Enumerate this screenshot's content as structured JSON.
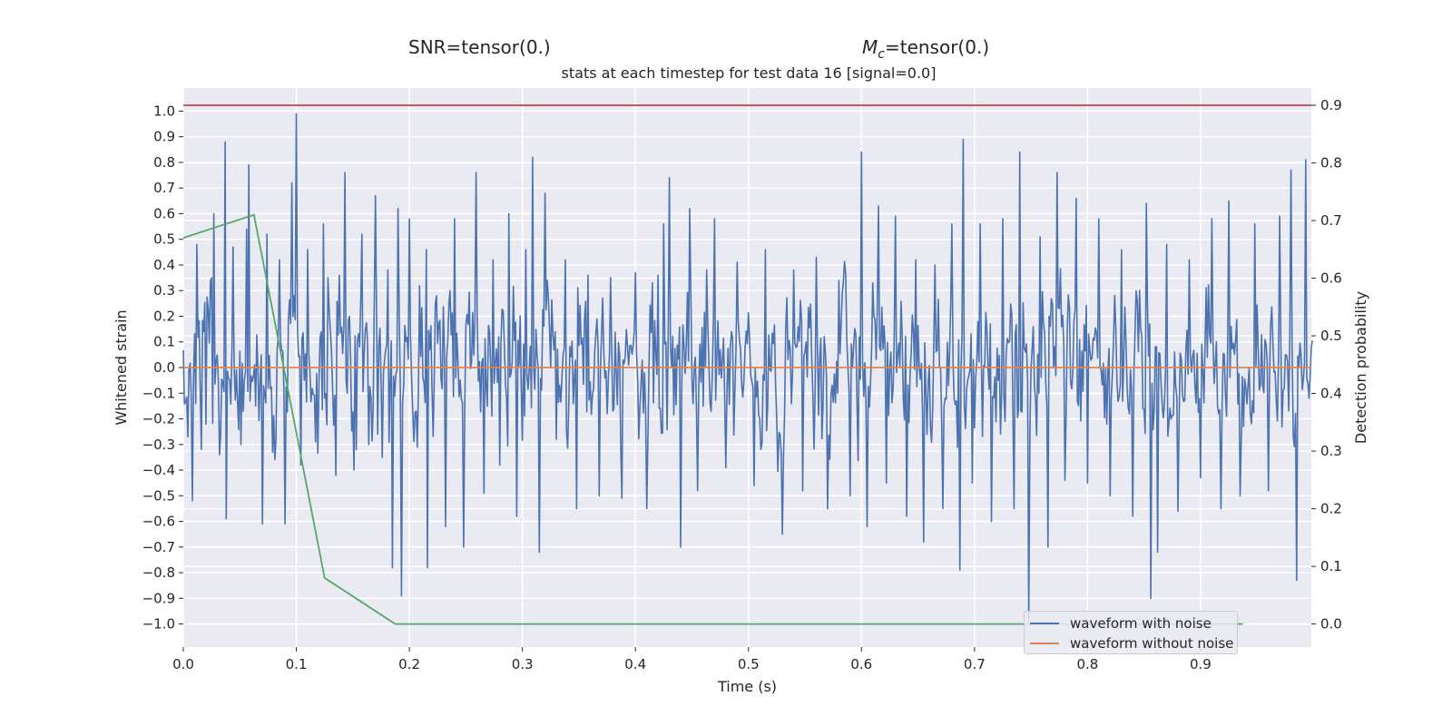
{
  "titles": {
    "snr": "SNR=tensor(0.)",
    "mc_symbol": "M",
    "mc_sub": "c",
    "mc_value": "=tensor(0.)",
    "plot": "stats at each timestep for test data 16 [signal=0.0]"
  },
  "chart_data": {
    "type": "line",
    "xlabel": "Time (s)",
    "ylabel_left": "Whitened strain",
    "ylabel_right": "Detection probability",
    "xlim": [
      0.0,
      0.998
    ],
    "ylim_left": [
      -1.09,
      1.09
    ],
    "ylim_right": [
      -0.04,
      0.93
    ],
    "x_ticks": [
      "0.0",
      "0.1",
      "0.2",
      "0.3",
      "0.4",
      "0.5",
      "0.6",
      "0.7",
      "0.8",
      "0.9"
    ],
    "y_ticks_left": [
      "1.0",
      "0.9",
      "0.8",
      "0.7",
      "0.6",
      "0.5",
      "0.4",
      "0.3",
      "0.2",
      "0.1",
      "0.0",
      "-0.1",
      "-0.2",
      "-0.3",
      "-0.4",
      "-0.5",
      "-0.6",
      "-0.7",
      "-0.8",
      "-0.9",
      "-1.0"
    ],
    "y_ticks_right": [
      "0.9",
      "0.8",
      "0.7",
      "0.6",
      "0.5",
      "0.4",
      "0.3",
      "0.2",
      "0.1",
      "0.0"
    ],
    "grid": true,
    "legend_position": "lower-right",
    "colors": {
      "noise": "#4c72b0",
      "clean": "#dd8452",
      "probability": "#55a868",
      "threshold": "#c44e52",
      "background": "#eaeaf2",
      "grid": "#ffffff"
    },
    "series": [
      {
        "name": "waveform with noise",
        "axis": "left",
        "points": 1000,
        "min": -1.0,
        "max": 1.0,
        "description_value": "noisy whitened strain"
      },
      {
        "name": "waveform without noise",
        "axis": "left",
        "x": [
          0.0,
          0.998
        ],
        "y": [
          0.0,
          0.0
        ]
      },
      {
        "axis": "right",
        "x": [
          0.0,
          0.0625,
          0.125,
          0.1875,
          0.9375
        ],
        "y": [
          0.67,
          0.71,
          0.08,
          0.0,
          0.0
        ]
      },
      {
        "axis": "right",
        "x": [
          0.0,
          0.998
        ],
        "y": [
          0.9,
          0.9
        ]
      }
    ],
    "noise_peaks": [
      [
        0.004,
        -0.27
      ],
      [
        0.0075,
        -0.52
      ],
      [
        0.012,
        0.48
      ],
      [
        0.02,
        -0.22
      ],
      [
        0.027,
        0.6
      ],
      [
        0.032,
        -0.34
      ],
      [
        0.037,
        0.88
      ],
      [
        0.038,
        -0.59
      ],
      [
        0.044,
        0.47
      ],
      [
        0.051,
        -0.3
      ],
      [
        0.056,
        0.54
      ],
      [
        0.058,
        0.79
      ],
      [
        0.064,
        -0.15
      ],
      [
        0.07,
        -0.61
      ],
      [
        0.074,
        0.52
      ],
      [
        0.079,
        -0.33
      ],
      [
        0.085,
        0.42
      ],
      [
        0.09,
        -0.61
      ],
      [
        0.096,
        0.72
      ],
      [
        0.1,
        0.99
      ],
      [
        0.104,
        -0.38
      ],
      [
        0.11,
        0.46
      ],
      [
        0.117,
        -0.29
      ],
      [
        0.124,
        0.56
      ],
      [
        0.128,
        0.35
      ],
      [
        0.135,
        -0.42
      ],
      [
        0.143,
        0.76
      ],
      [
        0.151,
        -0.4
      ],
      [
        0.158,
        0.52
      ],
      [
        0.164,
        -0.3
      ],
      [
        0.17,
        0.67
      ],
      [
        0.176,
        -0.35
      ],
      [
        0.181,
        0.38
      ],
      [
        0.185,
        -0.78
      ],
      [
        0.19,
        0.62
      ],
      [
        0.193,
        -0.89
      ],
      [
        0.2,
        0.58
      ],
      [
        0.207,
        -0.31
      ],
      [
        0.215,
        0.46
      ],
      [
        0.216,
        -0.78
      ],
      [
        0.224,
        0.28
      ],
      [
        0.232,
        -0.62
      ],
      [
        0.24,
        0.58
      ],
      [
        0.248,
        -0.7
      ],
      [
        0.259,
        0.76
      ],
      [
        0.266,
        -0.49
      ],
      [
        0.274,
        0.42
      ],
      [
        0.28,
        -0.38
      ],
      [
        0.288,
        0.6
      ],
      [
        0.295,
        -0.58
      ],
      [
        0.303,
        0.46
      ],
      [
        0.309,
        0.82
      ],
      [
        0.315,
        -0.72
      ],
      [
        0.322,
        0.34
      ],
      [
        0.32,
        0.68
      ],
      [
        0.33,
        -0.28
      ],
      [
        0.338,
        0.42
      ],
      [
        0.348,
        -0.55
      ],
      [
        0.358,
        0.36
      ],
      [
        0.368,
        -0.5
      ],
      [
        0.378,
        0.35
      ],
      [
        0.388,
        -0.51
      ],
      [
        0.4,
        0.37
      ],
      [
        0.41,
        -0.55
      ],
      [
        0.42,
        0.36
      ],
      [
        0.425,
        0.56
      ],
      [
        0.43,
        0.74
      ],
      [
        0.44,
        -0.7
      ],
      [
        0.448,
        0.62
      ],
      [
        0.455,
        -0.48
      ],
      [
        0.47,
        0.58
      ],
      [
        0.48,
        -0.39
      ],
      [
        0.49,
        0.41
      ],
      [
        0.505,
        -0.46
      ],
      [
        0.515,
        0.46
      ],
      [
        0.53,
        -0.65
      ],
      [
        0.54,
        0.38
      ],
      [
        0.548,
        -0.48
      ],
      [
        0.56,
        0.43
      ],
      [
        0.57,
        -0.55
      ],
      [
        0.58,
        0.34
      ],
      [
        0.59,
        -0.5
      ],
      [
        0.6,
        0.84
      ],
      [
        0.605,
        -0.62
      ],
      [
        0.615,
        0.63
      ],
      [
        0.622,
        -0.45
      ],
      [
        0.63,
        0.59
      ],
      [
        0.64,
        -0.58
      ],
      [
        0.648,
        0.42
      ],
      [
        0.655,
        -0.68
      ],
      [
        0.665,
        0.4
      ],
      [
        0.672,
        -0.55
      ],
      [
        0.68,
        0.56
      ],
      [
        0.687,
        -0.79
      ],
      [
        0.69,
        0.89
      ],
      [
        0.698,
        -0.45
      ],
      [
        0.705,
        0.56
      ],
      [
        0.715,
        -0.6
      ],
      [
        0.725,
        0.58
      ],
      [
        0.735,
        -0.55
      ],
      [
        0.74,
        0.84
      ],
      [
        0.748,
        -0.99
      ],
      [
        0.758,
        0.51
      ],
      [
        0.765,
        -0.7
      ],
      [
        0.773,
        0.76
      ],
      [
        0.78,
        -0.44
      ],
      [
        0.79,
        0.66
      ],
      [
        0.8,
        -0.45
      ],
      [
        0.81,
        0.58
      ],
      [
        0.82,
        -0.5
      ],
      [
        0.83,
        0.46
      ],
      [
        0.84,
        -0.58
      ],
      [
        0.852,
        0.64
      ],
      [
        0.856,
        -0.9
      ],
      [
        0.862,
        -0.72
      ],
      [
        0.87,
        0.48
      ],
      [
        0.88,
        -0.56
      ],
      [
        0.89,
        0.42
      ],
      [
        0.9,
        -0.43
      ],
      [
        0.91,
        0.58
      ],
      [
        0.918,
        -0.55
      ],
      [
        0.925,
        0.65
      ],
      [
        0.935,
        -0.5
      ],
      [
        0.948,
        0.56
      ],
      [
        0.96,
        -0.48
      ],
      [
        0.97,
        0.59
      ],
      [
        0.98,
        0.77
      ],
      [
        0.985,
        -0.83
      ],
      [
        0.993,
        0.81
      ],
      [
        0.996,
        -0.12
      ]
    ]
  }
}
